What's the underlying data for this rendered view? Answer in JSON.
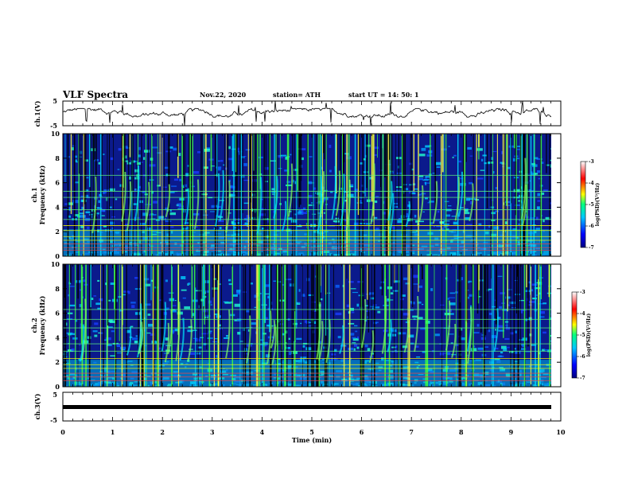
{
  "header": {
    "title": "VLF Spectra",
    "date": "Nov.22, 2020",
    "station": "station= ATH",
    "start": "start  UT =   14: 50: 1"
  },
  "colors": {
    "spectrogram_bg": "#0b1a8c",
    "trace": "#000000"
  },
  "chart_data": [
    {
      "type": "line",
      "panel": "ch1",
      "ylabel": "ch.1(V)",
      "ylim": [
        -5,
        5
      ],
      "yticks": [
        "5",
        "-5"
      ],
      "description_values": {
        "baseline": 0.4,
        "spike_min": -5,
        "spike_max": 5
      }
    },
    {
      "type": "heatmap",
      "panel": "spec1",
      "ylabel_top": "ch.1",
      "ylabel": "Frequency (kHz)",
      "ylim": [
        0,
        10
      ],
      "yticks": [
        "0",
        "2",
        "4",
        "6",
        "8",
        "10"
      ],
      "colorbar": {
        "label": "log(PSD)(V²/Hz)",
        "range": [
          -7,
          -3
        ],
        "ticks": [
          "-3",
          "-4",
          "-5",
          "-6",
          "-7"
        ]
      },
      "tones_khz": [
        0.5,
        0.7,
        1.0,
        1.3,
        1.6,
        2.1,
        2.5,
        3.0,
        3.8,
        4.8,
        5.3,
        6.6
      ]
    },
    {
      "type": "heatmap",
      "panel": "spec2",
      "ylabel_top": "ch.2",
      "ylabel": "Frequency (kHz)",
      "ylim": [
        0,
        10
      ],
      "yticks": [
        "0",
        "2",
        "4",
        "6",
        "8",
        "10"
      ],
      "colorbar": {
        "label": "log(PSD)(V²/Hz)",
        "range": [
          -7,
          -3
        ],
        "ticks": [
          "-3",
          "-4",
          "-5",
          "-6",
          "-7"
        ]
      },
      "tones_khz": [
        0.5,
        0.8,
        1.1,
        1.5,
        1.8,
        2.3,
        2.9,
        3.5,
        4.8,
        5.5,
        6.3
      ]
    },
    {
      "type": "line",
      "panel": "ch3",
      "ylabel": "ch.3(V)",
      "ylim": [
        -5,
        5
      ],
      "yticks": [
        "5",
        "-5"
      ],
      "values_constant": 0
    }
  ],
  "xaxis": {
    "label": "Time (min)",
    "ticks": [
      "0",
      "1",
      "2",
      "3",
      "4",
      "5",
      "6",
      "7",
      "8",
      "9",
      "10"
    ],
    "xlim": [
      0,
      10
    ],
    "data_end": 9.82
  }
}
